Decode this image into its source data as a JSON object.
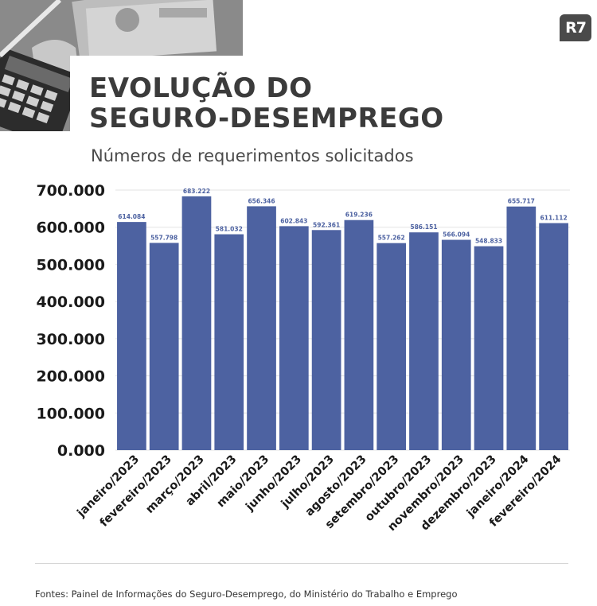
{
  "brand": {
    "logo_text": "R7"
  },
  "header": {
    "title_line1": "EVOLUÇÃO DO",
    "title_line2": "SEGURO-DESEMPREGO",
    "subtitle": "Números de requerimentos solicitados"
  },
  "footer": {
    "source": "Fontes:  Painel de Informações do Seguro-Desemprego, do Ministério do Trabalho e Emprego"
  },
  "colors": {
    "bar": "#4d62a1",
    "grid": "#e3e3e3",
    "axis_text": "#1a1a1a"
  },
  "chart_data": {
    "type": "bar",
    "title": "EVOLUÇÃO DO SEGURO-DESEMPREGO",
    "subtitle": "Números de requerimentos solicitados",
    "categories": [
      "janeiro/2023",
      "fevereiro/2023",
      "março/2023",
      "abril/2023",
      "maio/2023",
      "junho/2023",
      "julho/2023",
      "agosto/2023",
      "setembro/2023",
      "outubro/2023",
      "novembro/2023",
      "dezembro/2023",
      "janeiro/2024",
      "fevereiro/2024"
    ],
    "values": [
      614084,
      557798,
      683222,
      581032,
      656346,
      602843,
      592361,
      619236,
      557262,
      586151,
      566094,
      548833,
      655717,
      611112
    ],
    "value_labels": [
      "614.084",
      "557.798",
      "683.222",
      "581.032",
      "656.346",
      "602.843",
      "592.361",
      "619.236",
      "557.262",
      "586.151",
      "566.094",
      "548.833",
      "655.717",
      "611.112"
    ],
    "yticks": [
      0,
      100000,
      200000,
      300000,
      400000,
      500000,
      600000,
      700000
    ],
    "ytick_labels": [
      "0.000",
      "100.000",
      "200.000",
      "300.000",
      "400.000",
      "500.000",
      "600.000",
      "700.000"
    ],
    "ylim": [
      0,
      700000
    ],
    "grid": true
  }
}
